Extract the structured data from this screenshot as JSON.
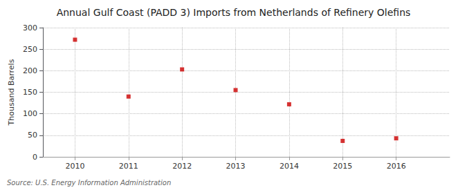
{
  "chart_data": {
    "type": "scatter",
    "title": "Annual Gulf Coast (PADD 3) Imports from Netherlands of Refinery Olefins",
    "ylabel": "Thousand Barrels",
    "annotation": "Source: U.S. Energy Information Administration",
    "x": [
      2010,
      2011,
      2012,
      2013,
      2014,
      2015,
      2016
    ],
    "values": [
      272,
      140,
      203,
      155,
      122,
      37,
      43
    ],
    "color": "#cc0000",
    "marker": "square",
    "xlim": [
      2009.4,
      2017.0
    ],
    "ylim": [
      0,
      300
    ],
    "xticks": [
      2010,
      2011,
      2012,
      2013,
      2014,
      2015,
      2016
    ],
    "yticks": [
      0,
      50,
      100,
      150,
      200,
      250,
      300
    ],
    "grid": true
  }
}
